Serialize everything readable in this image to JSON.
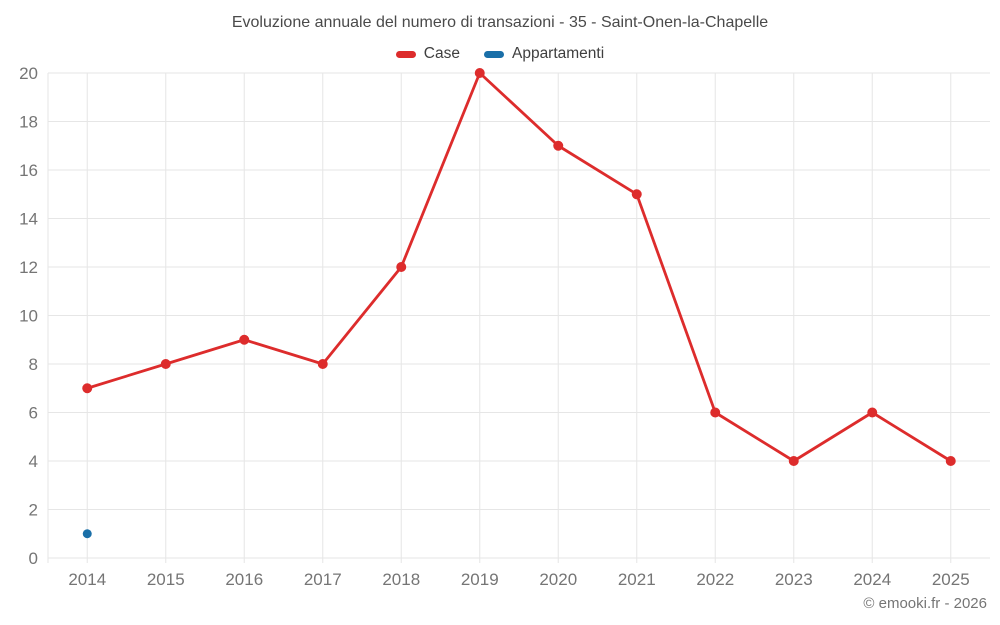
{
  "chart_data": {
    "type": "line",
    "title": "Evoluzione annuale del numero di transazioni - 35 - Saint-Onen-la-Chapelle",
    "categories": [
      "2014",
      "2015",
      "2016",
      "2017",
      "2018",
      "2019",
      "2020",
      "2021",
      "2022",
      "2023",
      "2024",
      "2025"
    ],
    "series": [
      {
        "name": "Case",
        "color": "#dd2c2c",
        "marker_radius": 5,
        "values": [
          7,
          8,
          9,
          8,
          12,
          20,
          17,
          15,
          6,
          4,
          6,
          4
        ]
      },
      {
        "name": "Appartamenti",
        "color": "#1a6fa8",
        "marker_radius": 4.5,
        "values": [
          1,
          null,
          null,
          null,
          null,
          null,
          null,
          null,
          null,
          null,
          null,
          null
        ]
      }
    ],
    "xlabel": "",
    "ylabel": "",
    "ylim": [
      0,
      20
    ],
    "ytick_step": 2,
    "grid": true,
    "legend_position": "top",
    "grid_color": "#e6e6e6",
    "tick_label_color": "#757575"
  },
  "footer": {
    "credit": "© emooki.fr - 2026"
  }
}
